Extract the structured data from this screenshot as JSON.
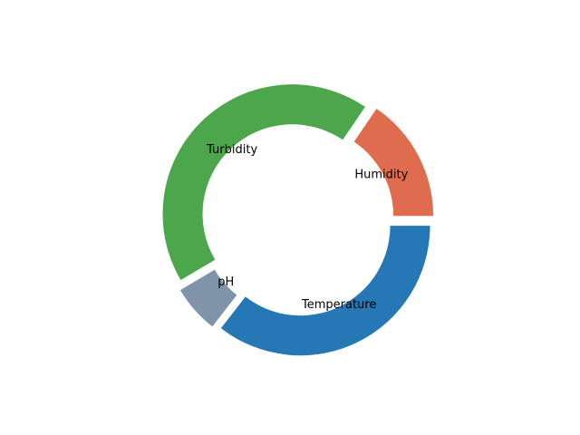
{
  "chart_data": {
    "type": "pie",
    "style": "donut",
    "title": "",
    "categories": [
      "Humidity",
      "Turbidity",
      "pH",
      "Temperature"
    ],
    "values": [
      15.5,
      43.0,
      6.0,
      35.5
    ],
    "colors": [
      "#e06c4f",
      "#4ca64c",
      "#7f94a8",
      "#2677b6"
    ],
    "start_angle_deg": 0,
    "direction": "counterclockwise",
    "exploded": true,
    "grid": false,
    "legend": "none"
  }
}
